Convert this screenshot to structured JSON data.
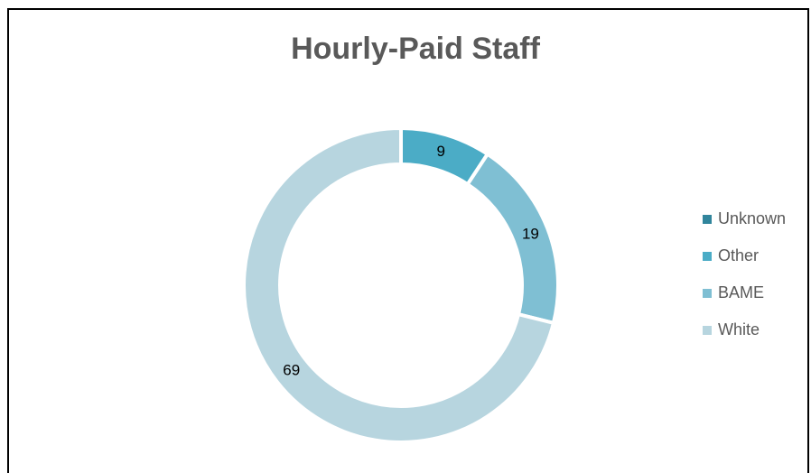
{
  "chart_data": {
    "type": "donut",
    "title": "Hourly-Paid Staff",
    "categories": [
      "Unknown",
      "Other",
      "BAME",
      "White"
    ],
    "values": [
      0,
      9,
      19,
      69
    ],
    "colors": [
      "#31859c",
      "#4bacc6",
      "#7fbfd3",
      "#b7d5df"
    ],
    "legend": "right"
  }
}
